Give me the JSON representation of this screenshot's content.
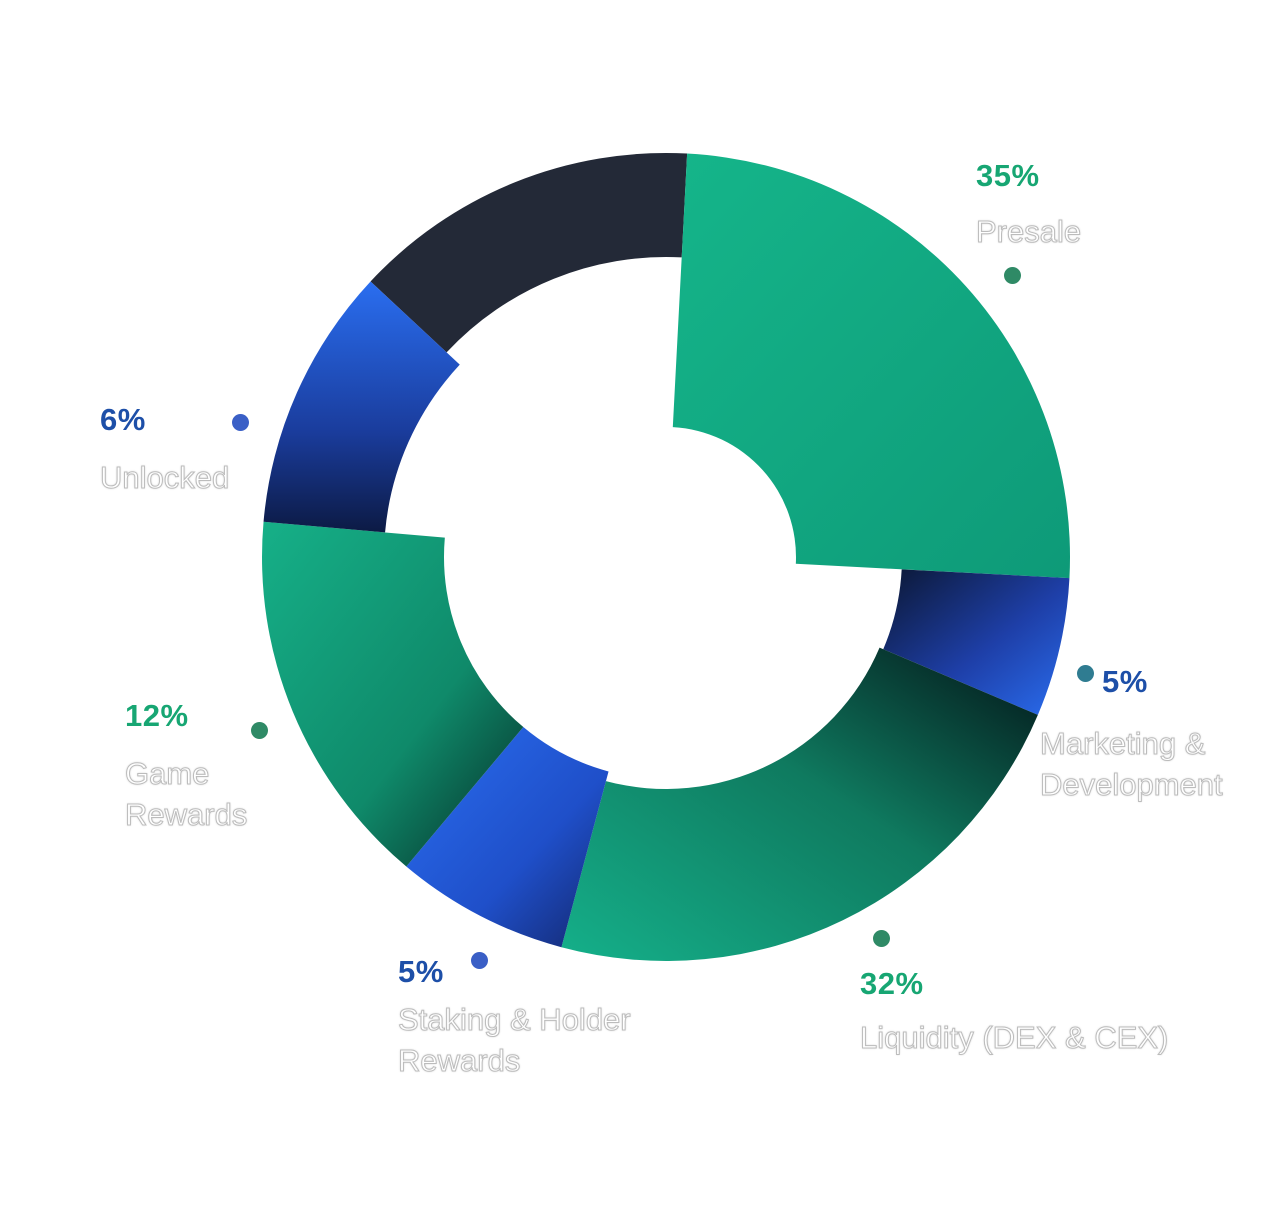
{
  "chart_data": {
    "type": "pie",
    "style": "donut",
    "title": "",
    "unit": "%",
    "slices": [
      {
        "id": "presale",
        "label": "Presale",
        "value": 35,
        "value_label": "35%",
        "color": "#12ab84",
        "label_color": "#17a673",
        "dot_color": "#2f8a66"
      },
      {
        "id": "marketing",
        "label": "Marketing & Development",
        "value": 5,
        "value_label": "5%",
        "color": "#2563eb",
        "label_color": "#1d4fa8",
        "dot_color": "#2f7c91"
      },
      {
        "id": "liquidity",
        "label": "Liquidity (DEX & CEX)",
        "value": 32,
        "value_label": "32%",
        "color": "#12ab84",
        "label_color": "#17a673",
        "dot_color": "#2f8a66"
      },
      {
        "id": "staking",
        "label": "Staking & Holder Rewards",
        "value": 5,
        "value_label": "5%",
        "color": "#2563eb",
        "label_color": "#1d4fa8",
        "dot_color": "#3a5fc6"
      },
      {
        "id": "game",
        "label": "Game Rewards",
        "value": 12,
        "value_label": "12%",
        "color": "#12ab84",
        "label_color": "#17a673",
        "dot_color": "#2f8a66"
      },
      {
        "id": "unlocked",
        "label": "Unlocked",
        "value": 6,
        "value_label": "6%",
        "color": "#2563eb",
        "label_color": "#1d4fa8",
        "dot_color": "#3a5fc6"
      }
    ],
    "unlabeled_slice": {
      "color": "#232937"
    }
  }
}
